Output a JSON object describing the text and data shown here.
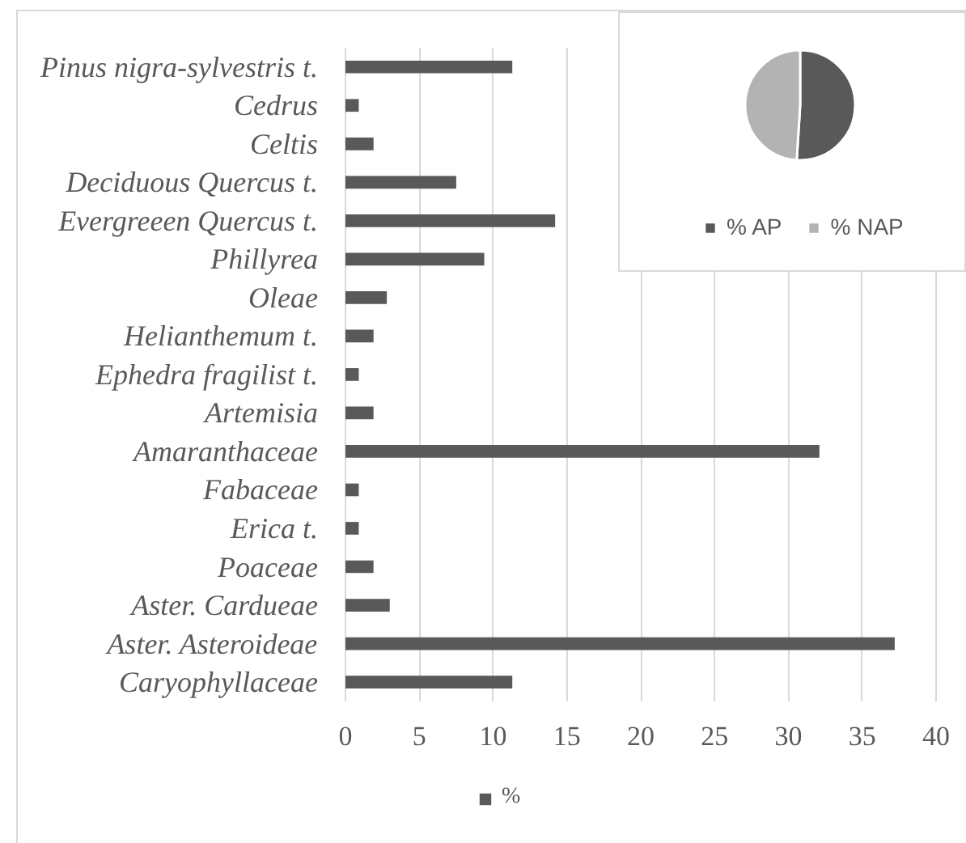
{
  "chart_data": [
    {
      "type": "bar",
      "orientation": "horizontal",
      "categories": [
        "Pinus nigra-sylvestris t.",
        "Cedrus",
        "Celtis",
        "Deciduous Quercus t.",
        "Evergreeen Quercus t.",
        "Phillyrea",
        "Oleae",
        "Helianthemum t.",
        "Ephedra fragilist t.",
        "Artemisia",
        "Amaranthaceae",
        "Fabaceae",
        "Erica t.",
        "Poaceae",
        "Aster. Cardueae",
        "Aster. Asteroideae",
        "Caryophyllaceae"
      ],
      "series": [
        {
          "name": "%",
          "color": "#595959",
          "values": [
            11.3,
            0.9,
            1.9,
            7.5,
            14.2,
            9.4,
            2.8,
            1.9,
            0.9,
            1.9,
            32.1,
            0.9,
            0.9,
            1.9,
            3.0,
            37.2,
            11.3
          ]
        }
      ],
      "xlim": [
        0,
        40
      ],
      "xticks": [
        0,
        5,
        10,
        15,
        20,
        25,
        30,
        35,
        40
      ],
      "grid": "x",
      "legend": "bottom"
    },
    {
      "type": "pie",
      "categories": [
        "% AP",
        "% NAP"
      ],
      "values": [
        51,
        49
      ],
      "colors": [
        "#595959",
        "#b3b3b3"
      ],
      "legend": "bottom"
    }
  ]
}
